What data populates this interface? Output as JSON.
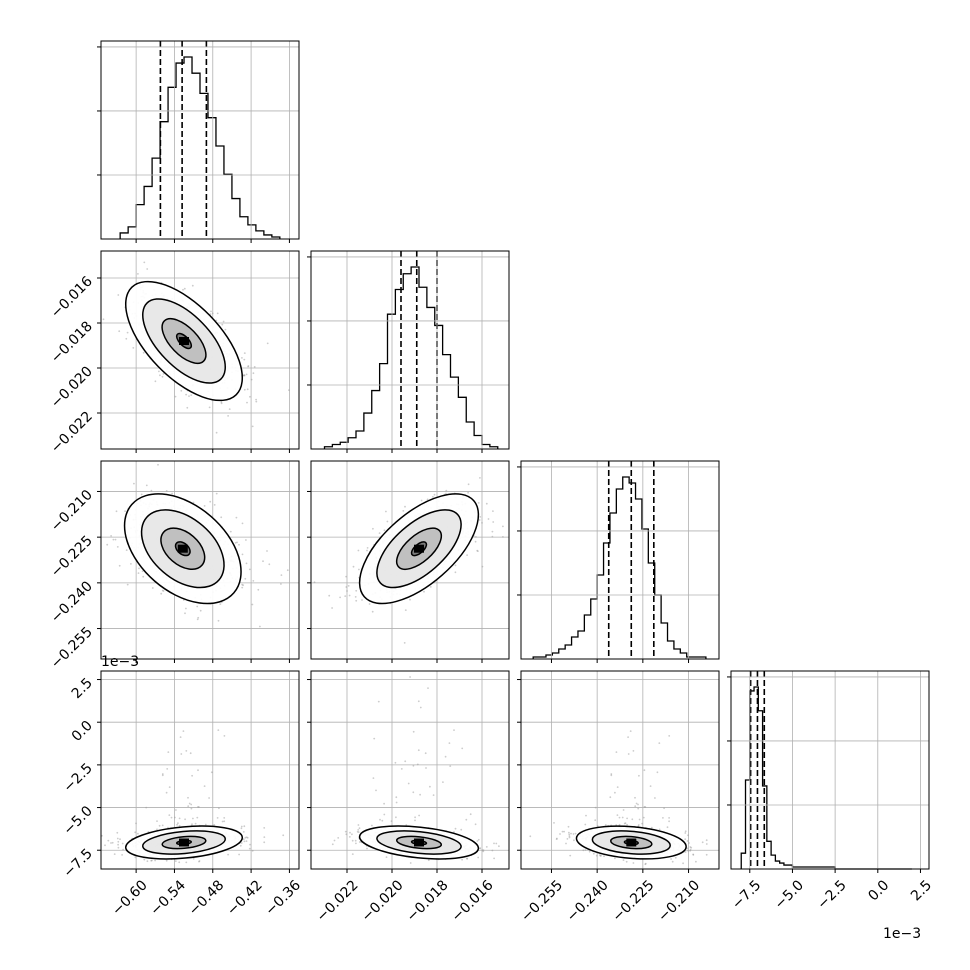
{
  "chart_data": {
    "type": "corner",
    "grid": true,
    "colors": {
      "hist_line": "#000000",
      "quantile_line": "#000000",
      "scatter_points": "#9a9a9a",
      "grid": "#b0b0b0",
      "axes": "#000000"
    },
    "parameters": [
      {
        "id": "p0",
        "range": [
          -0.655,
          -0.345
        ],
        "ticks": [
          -0.6,
          -0.54,
          -0.48,
          -0.42,
          -0.36
        ],
        "tick_labels": [
          "−0.60",
          "−0.54",
          "−0.48",
          "−0.42",
          "−0.36"
        ],
        "quantiles": [
          -0.562,
          -0.528,
          -0.49
        ]
      },
      {
        "id": "p1",
        "range": [
          -0.0236,
          -0.0148
        ],
        "ticks": [
          -0.022,
          -0.02,
          -0.018,
          -0.016
        ],
        "tick_labels": [
          "−0.022",
          "−0.020",
          "−0.018",
          "−0.016"
        ],
        "quantiles": [
          -0.0196,
          -0.0189,
          -0.018
        ]
      },
      {
        "id": "p2",
        "range": [
          -0.265,
          -0.2
        ],
        "ticks": [
          -0.255,
          -0.24,
          -0.225,
          -0.21
        ],
        "tick_labels": [
          "−0.255",
          "−0.240",
          "−0.225",
          "−0.210"
        ],
        "quantiles": [
          -0.2362,
          -0.2288,
          -0.2214
        ]
      },
      {
        "id": "p3",
        "range": [
          -0.0086,
          0.003
        ],
        "ticks": [
          -0.0075,
          -0.005,
          -0.0025,
          0.0,
          0.0025
        ],
        "tick_labels": [
          "−7.5",
          "−5.0",
          "−2.5",
          "0.0",
          "2.5"
        ],
        "offset_label": "1e−3",
        "quantiles": [
          -0.00745,
          -0.00705,
          -0.00665
        ]
      }
    ],
    "histograms": [
      {
        "param": "p0",
        "bin_edges": [
          -0.625,
          -0.6125,
          -0.6,
          -0.5875,
          -0.575,
          -0.5625,
          -0.55,
          -0.5375,
          -0.525,
          -0.5125,
          -0.5,
          -0.4875,
          -0.475,
          -0.4625,
          -0.45,
          -0.4375,
          -0.425,
          -0.4125,
          -0.4,
          -0.3875,
          -0.375
        ],
        "counts": [
          3,
          6,
          17,
          26,
          40,
          58,
          75,
          87,
          90,
          82,
          72,
          60,
          46,
          32,
          20,
          11,
          7,
          4,
          2,
          1
        ]
      },
      {
        "param": "p1",
        "bin_edges": [
          -0.023,
          -0.02265,
          -0.0223,
          -0.02195,
          -0.0216,
          -0.02125,
          -0.0209,
          -0.02055,
          -0.0202,
          -0.01985,
          -0.0195,
          -0.01915,
          -0.0188,
          -0.01845,
          -0.0181,
          -0.01775,
          -0.0174,
          -0.01705,
          -0.0167,
          -0.01635,
          -0.016,
          -0.01565,
          -0.0153
        ],
        "counts": [
          1,
          2,
          3,
          5,
          8,
          16,
          26,
          38,
          60,
          71,
          78,
          81,
          72,
          63,
          55,
          42,
          32,
          23,
          12,
          6,
          2,
          1
        ]
      },
      {
        "param": "p2",
        "bin_edges": [
          -0.261,
          -0.2589,
          -0.2568,
          -0.2547,
          -0.2526,
          -0.2505,
          -0.2484,
          -0.2463,
          -0.2442,
          -0.2421,
          -0.24,
          -0.2379,
          -0.2358,
          -0.2337,
          -0.2316,
          -0.2295,
          -0.2274,
          -0.2253,
          -0.2232,
          -0.2211,
          -0.219,
          -0.2169,
          -0.2148,
          -0.2127,
          -0.2106,
          -0.2085,
          -0.2064,
          -0.2043
        ],
        "counts": [
          1,
          1,
          2,
          3,
          5,
          7,
          11,
          14,
          22,
          30,
          42,
          58,
          73,
          85,
          91,
          88,
          80,
          65,
          48,
          32,
          18,
          9,
          5,
          3,
          1,
          1,
          1
        ]
      },
      {
        "param": "p3",
        "bin_edges": [
          -0.008,
          -0.00775,
          -0.0075,
          -0.00725,
          -0.007,
          -0.00675,
          -0.0065,
          -0.00625,
          -0.006,
          -0.00575,
          -0.0055,
          -0.00525,
          -0.005,
          -0.00475,
          -0.0045,
          -0.00425,
          -0.004,
          -0.00375,
          -0.0035,
          -0.00325,
          -0.003,
          -0.0025,
          -0.002,
          -0.0015,
          -0.001,
          -0.0005,
          0.0,
          0.0005,
          0.001,
          0.0015,
          0.002
        ],
        "counts": [
          8,
          45,
          90,
          92,
          80,
          42,
          14,
          7,
          4,
          3,
          2,
          2,
          1,
          1,
          1,
          1,
          1,
          1,
          1,
          1,
          1,
          0,
          0,
          0,
          0,
          0,
          0,
          0,
          0,
          0
        ]
      }
    ],
    "pairs": [
      {
        "x": "p0",
        "y": "p1",
        "mean": [
          -0.525,
          -0.0188
        ],
        "sd": [
          0.038,
          0.0011
        ],
        "corr": -0.62,
        "contour_levels": [
          0.3,
          0.9,
          1.7,
          2.4
        ]
      },
      {
        "x": "p0",
        "y": "p2",
        "mean": [
          -0.527,
          -0.2288
        ],
        "sd": [
          0.038,
          0.0075
        ],
        "corr": -0.42,
        "contour_levels": [
          0.3,
          0.9,
          1.7,
          2.4
        ]
      },
      {
        "x": "p1",
        "y": "p2",
        "mean": [
          -0.0188,
          -0.2288
        ],
        "sd": [
          0.0011,
          0.0075
        ],
        "corr": 0.62,
        "contour_levels": [
          0.3,
          0.9,
          1.7,
          2.4
        ]
      },
      {
        "x": "p0",
        "y": "p3",
        "mean": [
          -0.525,
          -0.00705
        ],
        "sd": [
          0.038,
          0.0004
        ],
        "corr": 0.3,
        "contour_levels": [
          0.3,
          0.9,
          1.7,
          2.4
        ]
      },
      {
        "x": "p1",
        "y": "p3",
        "mean": [
          -0.0188,
          -0.00705
        ],
        "sd": [
          0.0011,
          0.0004
        ],
        "corr": -0.35,
        "contour_levels": [
          0.3,
          0.9,
          1.7,
          2.4
        ]
      },
      {
        "x": "p2",
        "y": "p3",
        "mean": [
          -0.2288,
          -0.00705
        ],
        "sd": [
          0.0075,
          0.0004
        ],
        "corr": -0.25,
        "contour_levels": [
          0.3,
          0.9,
          1.7,
          2.4
        ]
      }
    ]
  }
}
